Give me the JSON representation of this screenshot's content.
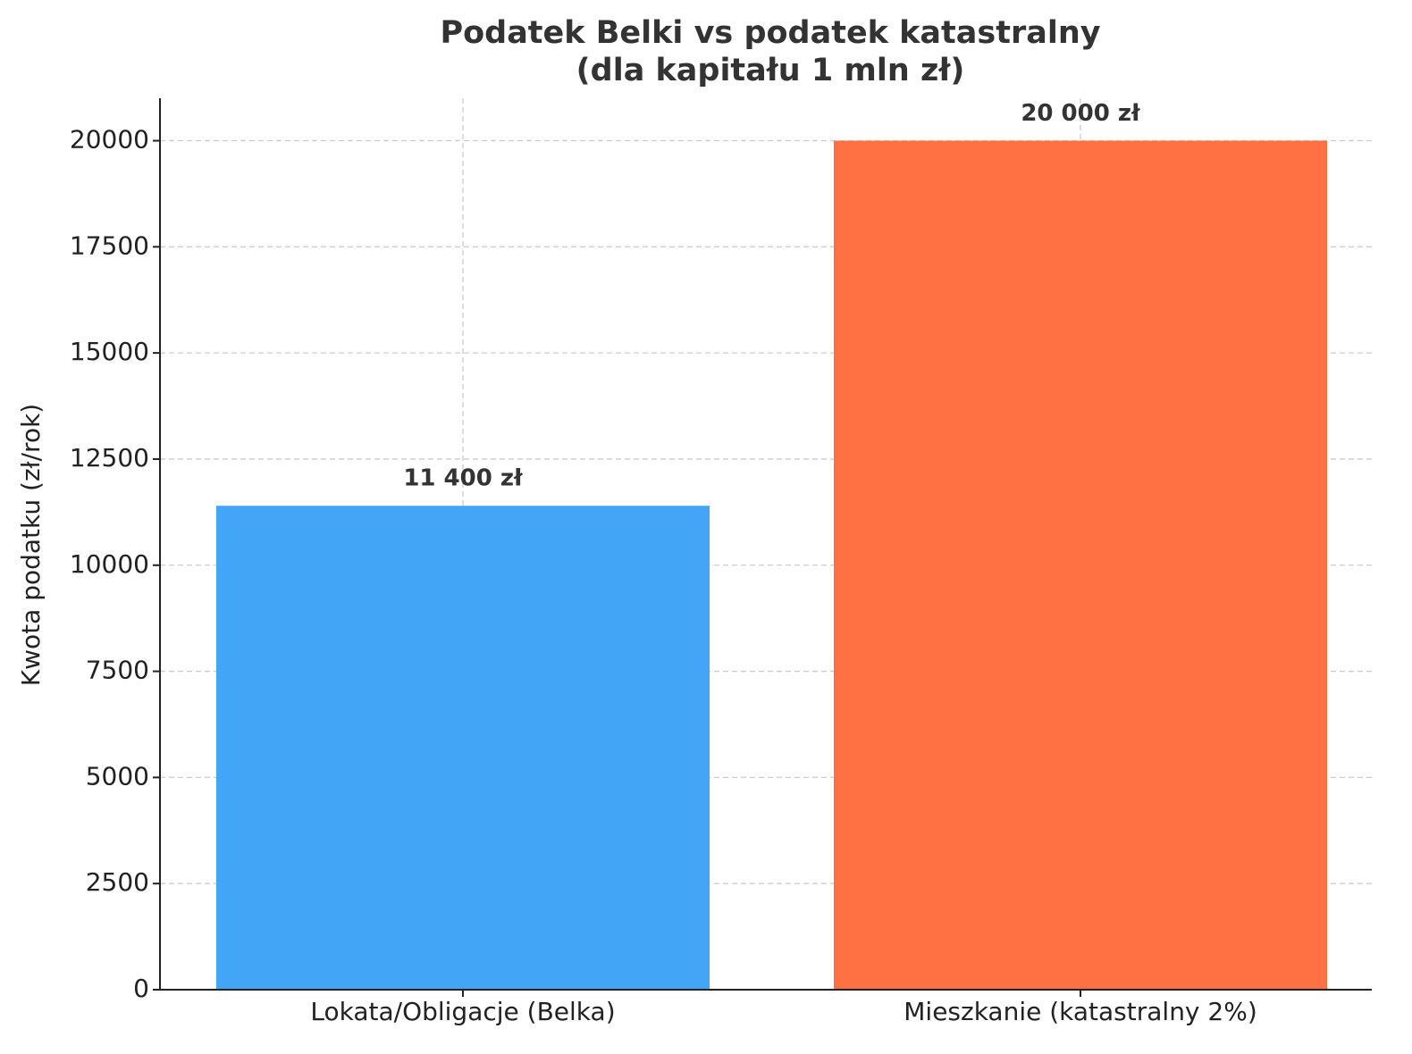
{
  "chart_data": {
    "type": "bar",
    "title": [
      "Podatek Belki vs podatek katastralny",
      "(dla kapitału 1 mln zł)"
    ],
    "ylabel": "Kwota podatku (zł/rok)",
    "categories": [
      "Lokata/Obligacje (Belka)",
      "Mieszkanie (katastralny 2%)"
    ],
    "values": [
      11400,
      20000
    ],
    "value_labels": [
      "11 400 zł",
      "20 000 zł"
    ],
    "colors": [
      "#42a5f5",
      "#ff7043"
    ],
    "ylim": [
      0,
      21000
    ],
    "yticks": [
      0,
      2500,
      5000,
      7500,
      10000,
      12500,
      15000,
      17500,
      20000
    ],
    "grid": true
  }
}
